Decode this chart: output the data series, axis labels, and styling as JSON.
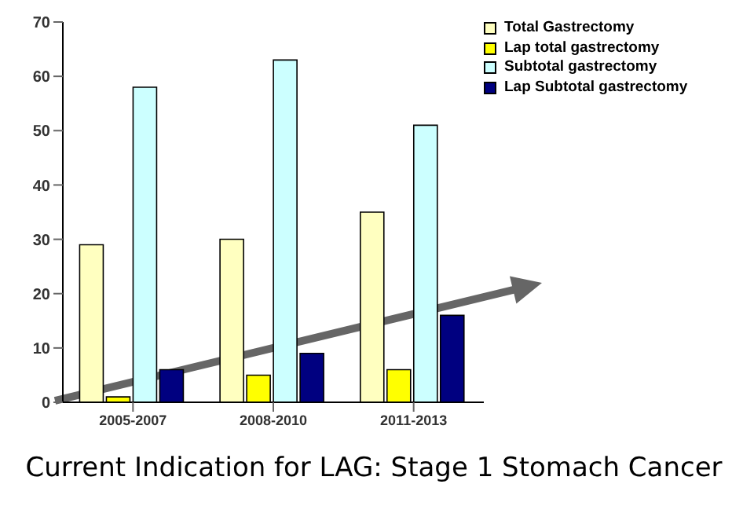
{
  "chart_data": {
    "type": "bar",
    "title": "Current Indication for LAG: Stage 1 Stomach Cancer",
    "categories": [
      "2005-2007",
      "2008-2010",
      "2011-2013"
    ],
    "series": [
      {
        "name": "Total Gastrectomy",
        "color": "#ffffc0",
        "values": [
          29,
          30,
          35
        ]
      },
      {
        "name": "Lap total gastrectomy",
        "color": "#ffff00",
        "values": [
          1,
          5,
          6
        ]
      },
      {
        "name": "Subtotal gastrectomy",
        "color": "#ccffff",
        "values": [
          58,
          63,
          51
        ]
      },
      {
        "name": "Lap Subtotal gastrectomy",
        "color": "#000080",
        "values": [
          6,
          9,
          16
        ]
      }
    ],
    "ylim": [
      0,
      70
    ],
    "yticks": [
      0,
      10,
      20,
      30,
      40,
      50,
      60,
      70
    ],
    "grid": false,
    "legend": "top right"
  }
}
